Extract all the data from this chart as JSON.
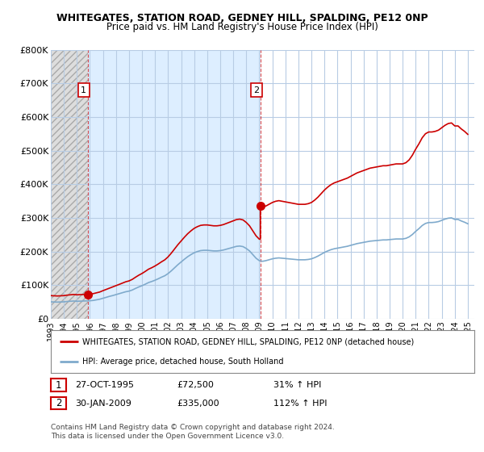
{
  "title": "WHITEGATES, STATION ROAD, GEDNEY HILL, SPALDING, PE12 0NP",
  "subtitle": "Price paid vs. HM Land Registry's House Price Index (HPI)",
  "ylabel_ticks": [
    "£0",
    "£100K",
    "£200K",
    "£300K",
    "£400K",
    "£500K",
    "£600K",
    "£700K",
    "£800K"
  ],
  "ytick_values": [
    0,
    100000,
    200000,
    300000,
    400000,
    500000,
    600000,
    700000,
    800000
  ],
  "ylim": [
    0,
    800000
  ],
  "xlim_start": 1993.0,
  "xlim_end": 2025.5,
  "sale1_x": 1995.82,
  "sale1_y": 72500,
  "sale2_x": 2009.08,
  "sale2_y": 335000,
  "red_line_color": "#cc0000",
  "blue_line_color": "#7faacc",
  "vline_color": "#cc0000",
  "background_color": "#ffffff",
  "hatch_color": "#d8d8d8",
  "light_blue_bg": "#ddeeff",
  "white_bg": "#ffffff",
  "grid_color": "#ccddee",
  "legend_label_red": "WHITEGATES, STATION ROAD, GEDNEY HILL, SPALDING, PE12 0NP (detached house)",
  "legend_label_blue": "HPI: Average price, detached house, South Holland",
  "table_rows": [
    {
      "num": "1",
      "date": "27-OCT-1995",
      "price": "£72,500",
      "hpi": "31% ↑ HPI"
    },
    {
      "num": "2",
      "date": "30-JAN-2009",
      "price": "£335,000",
      "hpi": "112% ↑ HPI"
    }
  ],
  "copyright_text": "Contains HM Land Registry data © Crown copyright and database right 2024.\nThis data is licensed under the Open Government Licence v3.0.",
  "hpi_index": [
    100.0,
    99.2,
    98.5,
    99.2,
    100.0,
    102.1,
    103.5,
    105.0,
    103.5,
    104.3,
    105.1,
    105.8,
    106.6,
    108.5,
    112.0,
    115.6,
    121.5,
    126.9,
    132.7,
    137.5,
    143.2,
    148.8,
    154.5,
    160.1,
    163.8,
    170.5,
    179.9,
    188.7,
    196.2,
    205.2,
    214.8,
    221.3,
    228.8,
    237.5,
    247.0,
    255.5,
    268.4,
    284.7,
    303.1,
    321.0,
    337.5,
    353.5,
    368.5,
    381.0,
    392.0,
    399.5,
    405.0,
    406.8,
    406.8,
    404.9,
    403.0,
    403.0,
    404.9,
    408.5,
    413.8,
    419.2,
    424.7,
    430.2,
    432.0,
    428.6,
    417.6,
    402.9,
    381.3,
    359.6,
    345.0,
    341.3,
    345.0,
    350.5,
    355.9,
    359.6,
    361.5,
    359.6,
    357.7,
    355.9,
    354.0,
    352.2,
    350.3,
    350.3,
    350.3,
    352.2,
    355.9,
    363.2,
    372.3,
    383.2,
    394.1,
    403.0,
    410.5,
    415.9,
    419.6,
    423.2,
    426.8,
    430.5,
    435.8,
    441.1,
    446.5,
    450.1,
    453.8,
    457.4,
    461.1,
    463.0,
    464.8,
    466.7,
    468.5,
    468.5,
    470.4,
    472.2,
    474.1,
    474.1,
    474.1,
    477.8,
    486.6,
    501.0,
    519.4,
    535.7,
    554.1,
    566.5,
    571.9,
    571.9,
    573.8,
    577.5,
    584.9,
    592.3,
    597.8,
    599.6,
    590.4,
    590.4,
    581.2,
    573.8,
    564.6
  ],
  "xtick_years": [
    1993,
    1994,
    1995,
    1996,
    1997,
    1998,
    1999,
    2000,
    2001,
    2002,
    2003,
    2004,
    2005,
    2006,
    2007,
    2008,
    2009,
    2010,
    2011,
    2012,
    2013,
    2014,
    2015,
    2016,
    2017,
    2018,
    2019,
    2020,
    2021,
    2022,
    2023,
    2024,
    2025
  ]
}
